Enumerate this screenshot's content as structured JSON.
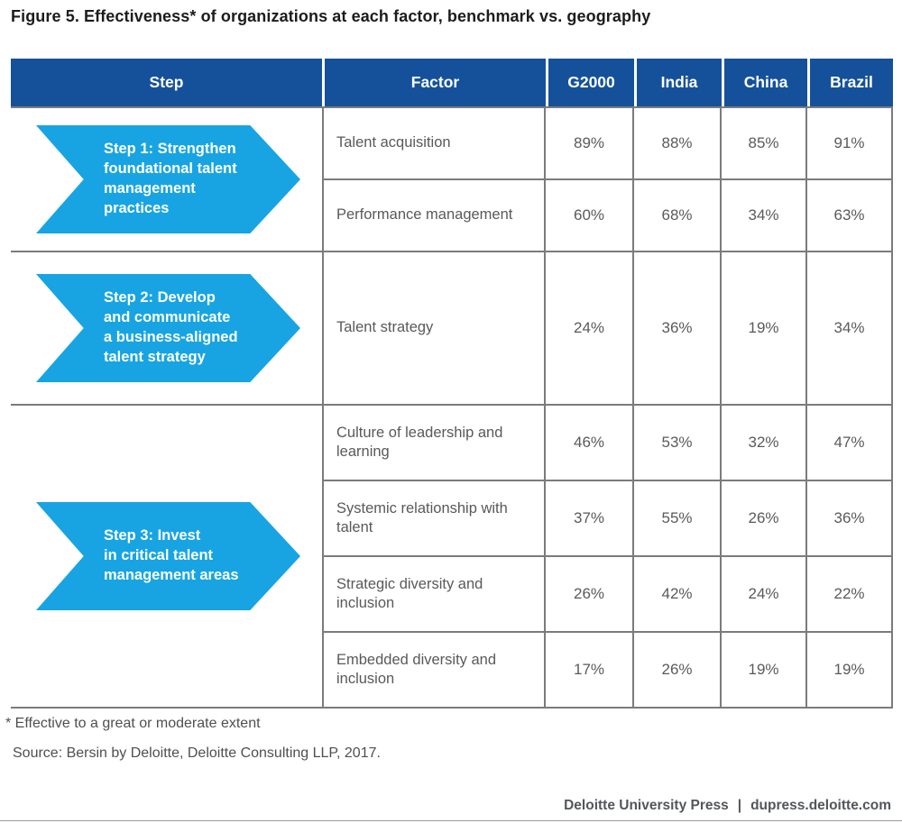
{
  "title": "Figure 5. Effectiveness* of organizations at each factor, benchmark vs. geography",
  "table": {
    "headers": [
      "Step",
      "Factor",
      "G2000",
      "India",
      "China",
      "Brazil"
    ],
    "groups": [
      {
        "step": "Step 1: Strengthen\nfoundational talent\nmanagement\npractices",
        "rows": [
          {
            "factor": "Talent acquisition",
            "values": [
              "89%",
              "88%",
              "85%",
              "91%"
            ]
          },
          {
            "factor": "Performance management",
            "values": [
              "60%",
              "68%",
              "34%",
              "63%"
            ]
          }
        ]
      },
      {
        "step": "Step 2: Develop\nand communicate\na business-aligned\ntalent strategy",
        "rows": [
          {
            "factor": "Talent strategy",
            "values": [
              "24%",
              "36%",
              "19%",
              "34%"
            ]
          }
        ]
      },
      {
        "step": "Step 3: Invest\nin critical talent\nmanagement areas",
        "rows": [
          {
            "factor": "Culture of leadership and learning",
            "values": [
              "46%",
              "53%",
              "32%",
              "47%"
            ]
          },
          {
            "factor": "Systemic relationship with talent",
            "values": [
              "37%",
              "55%",
              "26%",
              "36%"
            ]
          },
          {
            "factor": "Strategic diversity and inclusion",
            "values": [
              "26%",
              "42%",
              "24%",
              "22%"
            ]
          },
          {
            "factor": "Embedded diversity and inclusion",
            "values": [
              "17%",
              "26%",
              "19%",
              "19%"
            ]
          }
        ]
      }
    ]
  },
  "footnote": "* Effective to a great or moderate extent",
  "source": "Source: Bersin by Deloitte, Deloitte Consulting LLP, 2017.",
  "footer": {
    "brand": "Deloitte University Press",
    "separator": "|",
    "url": "dupress.deloitte.com"
  },
  "colors": {
    "header_bg": "#15519B",
    "arrow_blue": "#18A4E2",
    "grid_border": "#7B7B7B",
    "body_text": "#58595B",
    "footer_text": "#53565A"
  },
  "chart_data": {
    "type": "table",
    "title": "Figure 5. Effectiveness* of organizations at each factor, benchmark vs. geography",
    "columns": [
      "Step",
      "Factor",
      "G2000",
      "India",
      "China",
      "Brazil"
    ],
    "rows": [
      [
        "Step 1: Strengthen foundational talent management practices",
        "Talent acquisition",
        "89%",
        "88%",
        "85%",
        "91%"
      ],
      [
        "Step 1: Strengthen foundational talent management practices",
        "Performance management",
        "60%",
        "68%",
        "34%",
        "63%"
      ],
      [
        "Step 2: Develop and communicate a business-aligned talent strategy",
        "Talent strategy",
        "24%",
        "36%",
        "19%",
        "34%"
      ],
      [
        "Step 3: Invest in critical talent management areas",
        "Culture of leadership and learning",
        "46%",
        "53%",
        "32%",
        "47%"
      ],
      [
        "Step 3: Invest in critical talent management areas",
        "Systemic relationship with talent",
        "37%",
        "55%",
        "26%",
        "36%"
      ],
      [
        "Step 3: Invest in critical talent management areas",
        "Strategic diversity and inclusion",
        "26%",
        "42%",
        "24%",
        "22%"
      ],
      [
        "Step 3: Invest in critical talent management areas",
        "Embedded diversity and inclusion",
        "17%",
        "26%",
        "19%",
        "19%"
      ]
    ],
    "notes": [
      "* Effective to a great or moderate extent",
      "Source: Bersin by Deloitte, Deloitte Consulting LLP, 2017."
    ]
  }
}
